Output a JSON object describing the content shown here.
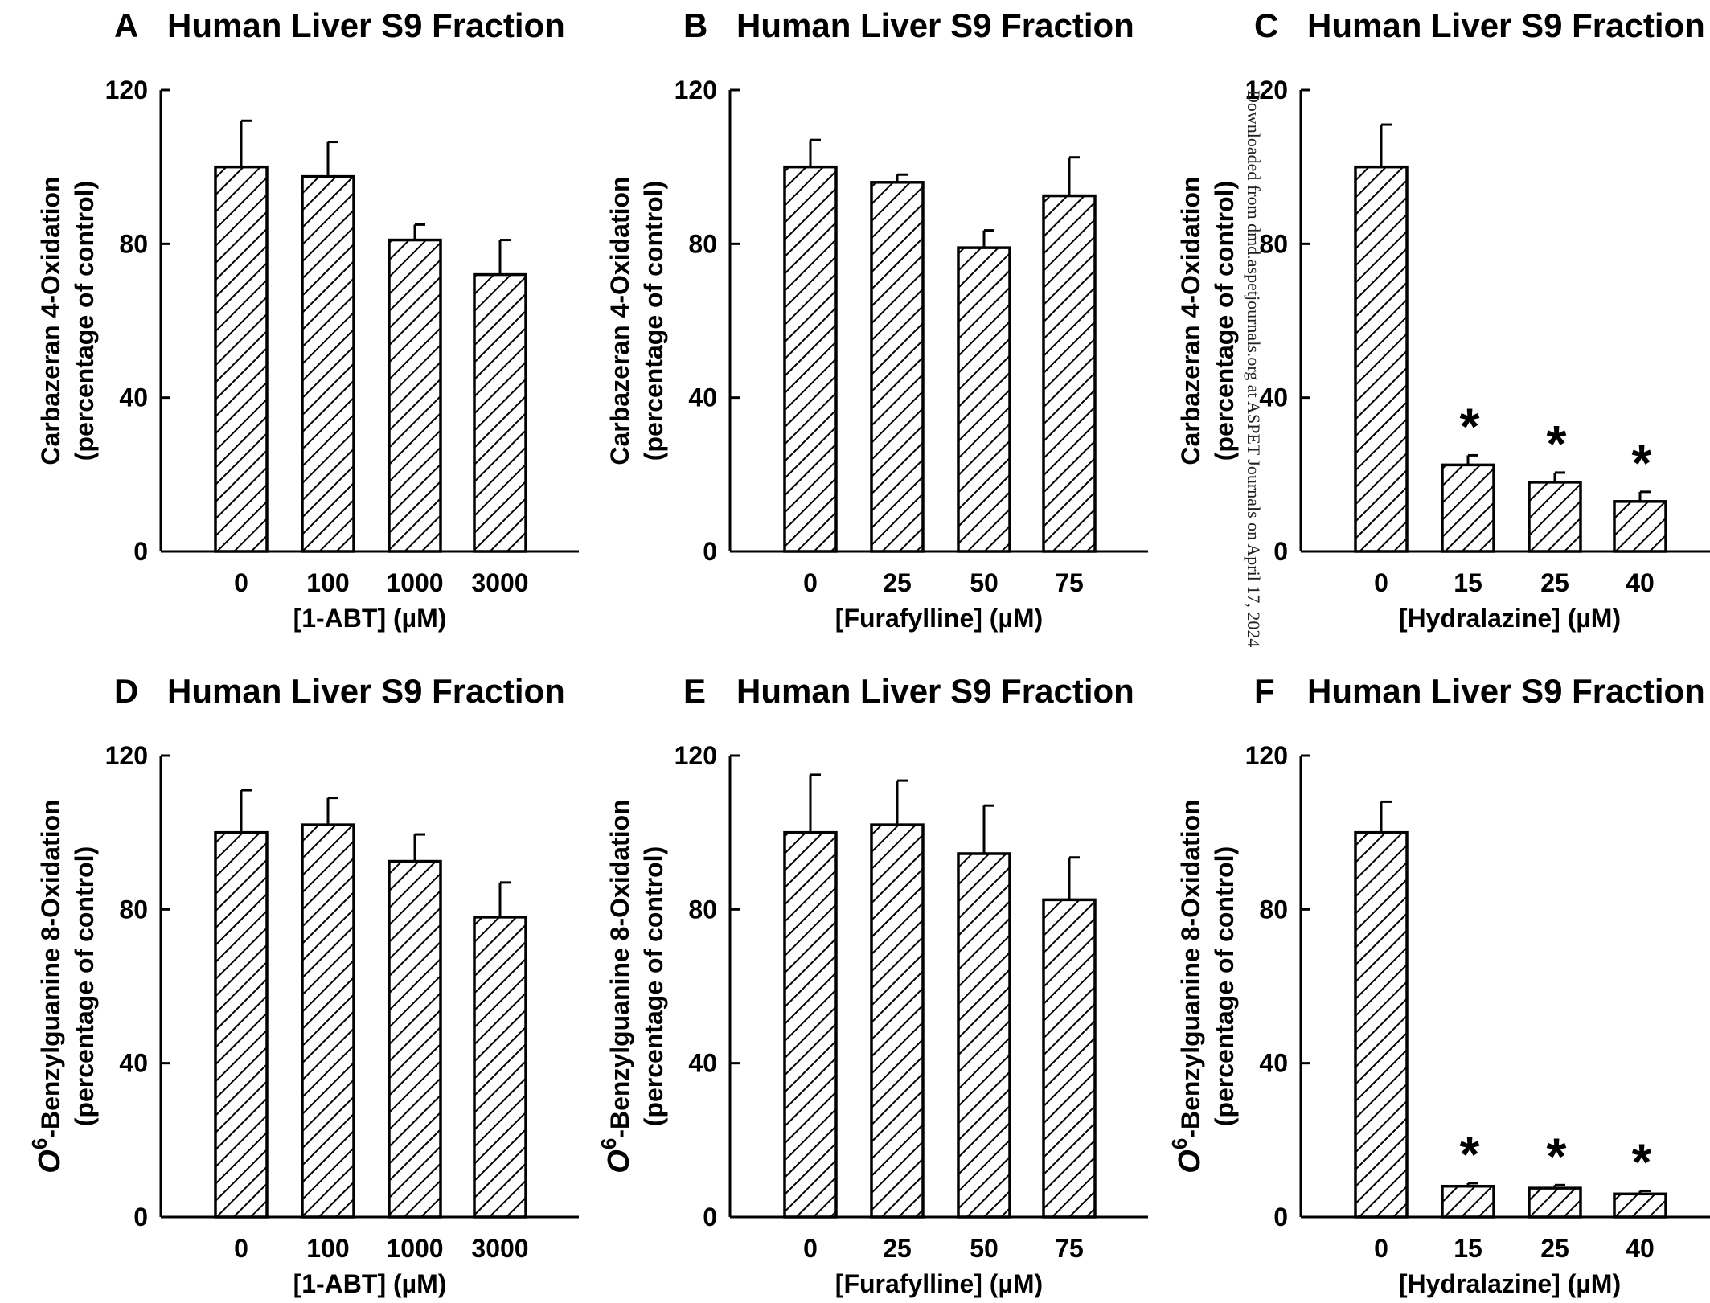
{
  "page_number": "",
  "watermark": "Downloaded from dmd.aspetjournals.org at ASPET Journals on April 17, 2024",
  "significance_symbol": "*",
  "colors": {
    "ink": "#000000",
    "background": "#ffffff"
  },
  "chart_data": [
    {
      "panel": "A",
      "type": "bar",
      "title": "Human Liver S9 Fraction",
      "ylabel_lines": [
        "Carbazeran 4-Oxidation",
        "(percentage of control)"
      ],
      "xlabel": "[1-ABT] (µM)",
      "categories": [
        "0",
        "100",
        "1000",
        "3000"
      ],
      "values": [
        100,
        97.5,
        81,
        72
      ],
      "errors": [
        12,
        9,
        4,
        9
      ],
      "significant": [
        false,
        false,
        false,
        false
      ],
      "ylim": [
        0,
        120
      ],
      "yticks": [
        0,
        40,
        80,
        120
      ],
      "bar_fill": "diagonal-hatch",
      "grid": false
    },
    {
      "panel": "B",
      "type": "bar",
      "title": "Human Liver S9 Fraction",
      "ylabel_lines": [
        "Carbazeran 4-Oxidation",
        "(percentage of control)"
      ],
      "xlabel": "[Furafylline] (µM)",
      "categories": [
        "0",
        "25",
        "50",
        "75"
      ],
      "values": [
        100,
        96,
        79,
        92.5
      ],
      "errors": [
        7,
        2,
        4.5,
        10
      ],
      "significant": [
        false,
        false,
        false,
        false
      ],
      "ylim": [
        0,
        120
      ],
      "yticks": [
        0,
        40,
        80,
        120
      ],
      "bar_fill": "diagonal-hatch",
      "grid": false
    },
    {
      "panel": "C",
      "type": "bar",
      "title": "Human Liver S9 Fraction",
      "ylabel_lines": [
        "Carbazeran 4-Oxidation",
        "(percentage of control)"
      ],
      "xlabel": "[Hydralazine] (µM)",
      "categories": [
        "0",
        "15",
        "25",
        "40"
      ],
      "values": [
        100,
        22.5,
        18,
        13
      ],
      "errors": [
        11,
        2.5,
        2.5,
        2.5
      ],
      "significant": [
        false,
        true,
        true,
        true
      ],
      "ylim": [
        0,
        120
      ],
      "yticks": [
        0,
        40,
        80,
        120
      ],
      "bar_fill": "diagonal-hatch",
      "grid": false
    },
    {
      "panel": "D",
      "type": "bar",
      "title": "Human Liver S9 Fraction",
      "ylabel_prefix": "O",
      "ylabel_superscript": "6",
      "ylabel_lines": [
        "-Benzylguanine 8-Oxidation",
        "(percentage of control)"
      ],
      "xlabel": "[1-ABT] (µM)",
      "categories": [
        "0",
        "100",
        "1000",
        "3000"
      ],
      "values": [
        100,
        102,
        92.5,
        78
      ],
      "errors": [
        11,
        7,
        7,
        9
      ],
      "significant": [
        false,
        false,
        false,
        false
      ],
      "ylim": [
        0,
        120
      ],
      "yticks": [
        0,
        40,
        80,
        120
      ],
      "bar_fill": "diagonal-hatch",
      "grid": false
    },
    {
      "panel": "E",
      "type": "bar",
      "title": "Human Liver S9 Fraction",
      "ylabel_prefix": "O",
      "ylabel_superscript": "6",
      "ylabel_lines": [
        "-Benzylguanine 8-Oxidation",
        "(percentage of control)"
      ],
      "xlabel": "[Furafylline] (µM)",
      "categories": [
        "0",
        "25",
        "50",
        "75"
      ],
      "values": [
        100,
        102,
        94.5,
        82.5
      ],
      "errors": [
        15,
        11.5,
        12.5,
        11
      ],
      "significant": [
        false,
        false,
        false,
        false
      ],
      "ylim": [
        0,
        120
      ],
      "yticks": [
        0,
        40,
        80,
        120
      ],
      "bar_fill": "diagonal-hatch",
      "grid": false
    },
    {
      "panel": "F",
      "type": "bar",
      "title": "Human Liver S9 Fraction",
      "ylabel_prefix": "O",
      "ylabel_superscript": "6",
      "ylabel_lines": [
        "-Benzylguanine 8-Oxidation",
        "(percentage of control)"
      ],
      "xlabel": "[Hydralazine] (µM)",
      "categories": [
        "0",
        "15",
        "25",
        "40"
      ],
      "values": [
        100,
        8,
        7.5,
        6
      ],
      "errors": [
        8,
        0.8,
        0.8,
        0.8
      ],
      "significant": [
        false,
        true,
        true,
        true
      ],
      "ylim": [
        0,
        120
      ],
      "yticks": [
        0,
        40,
        80,
        120
      ],
      "bar_fill": "diagonal-hatch",
      "grid": false
    }
  ]
}
